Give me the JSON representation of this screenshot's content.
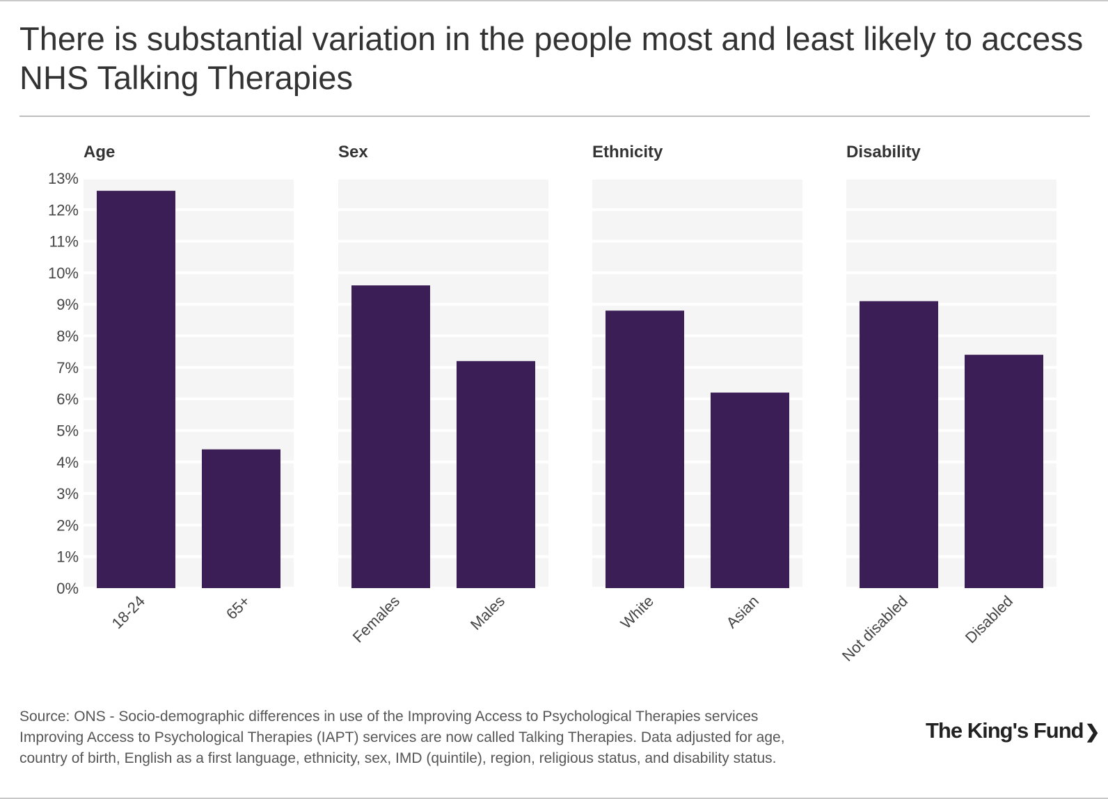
{
  "title": "There is substantial variation in the people most and least likely to access NHS Talking Therapies",
  "chart_data": {
    "type": "bar",
    "title": "There is substantial variation in the people most and least likely to access NHS Talking Therapies",
    "ylabel": "",
    "xlabel": "",
    "ylim": [
      0,
      13
    ],
    "y_ticks": [
      0,
      1,
      2,
      3,
      4,
      5,
      6,
      7,
      8,
      9,
      10,
      11,
      12,
      13
    ],
    "y_tick_labels": [
      "0%",
      "1%",
      "2%",
      "3%",
      "4%",
      "5%",
      "6%",
      "7%",
      "8%",
      "9%",
      "10%",
      "11%",
      "12%",
      "13%"
    ],
    "grid": true,
    "bar_color": "#3a1e55",
    "panel_bg": "#f5f5f5",
    "panels": [
      {
        "title": "Age",
        "categories": [
          "18-24",
          "65+"
        ],
        "values": [
          12.6,
          4.4
        ]
      },
      {
        "title": "Sex",
        "categories": [
          "Females",
          "Males"
        ],
        "values": [
          9.6,
          7.2
        ]
      },
      {
        "title": "Ethnicity",
        "categories": [
          "White",
          "Asian"
        ],
        "values": [
          8.8,
          6.2
        ]
      },
      {
        "title": "Disability",
        "categories": [
          "Not disabled",
          "Disabled"
        ],
        "values": [
          9.1,
          7.4
        ]
      }
    ]
  },
  "footer": {
    "lines": [
      "Source: ONS - Socio-demographic differences in use of the Improving Access to Psychological Therapies services",
      "Improving Access to Psychological Therapies (IAPT) services are now called Talking Therapies. Data adjusted for age,",
      "country of birth, English as a first language, ethnicity, sex, IMD (quintile), region, religious status, and disability status."
    ]
  },
  "logo": {
    "text": "The King's Fund",
    "arrow": "❯"
  }
}
